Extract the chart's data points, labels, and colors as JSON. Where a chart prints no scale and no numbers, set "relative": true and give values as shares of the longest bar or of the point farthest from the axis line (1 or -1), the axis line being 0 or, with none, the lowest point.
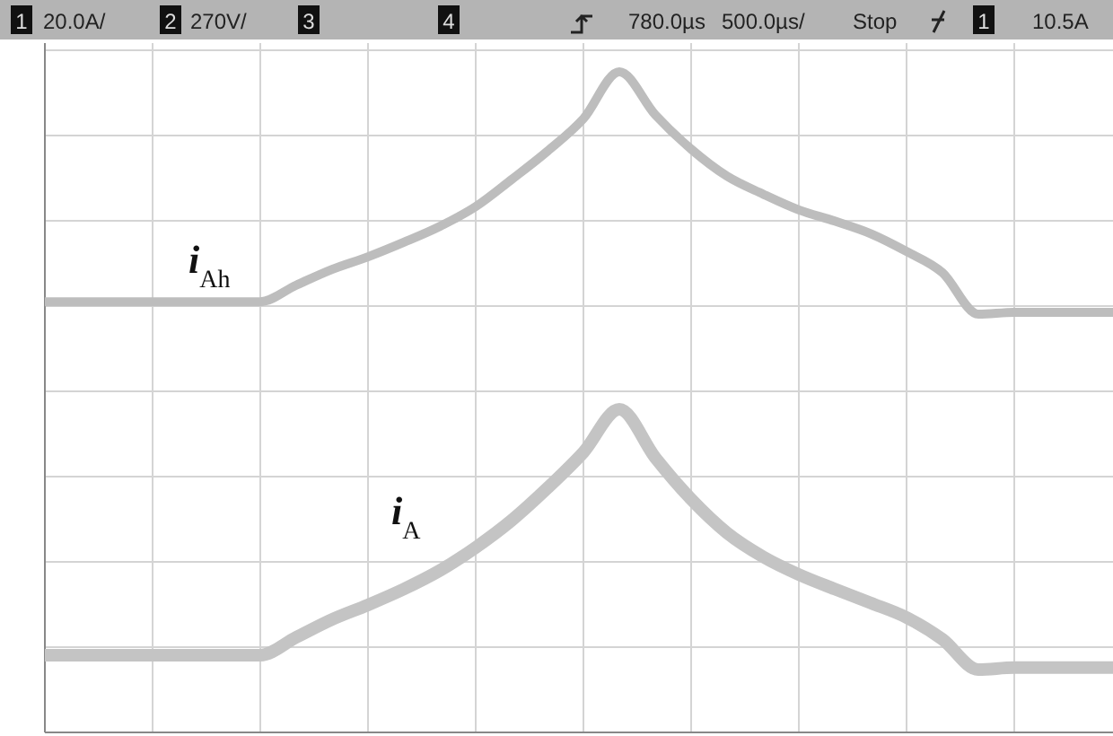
{
  "chart_data": {
    "type": "line",
    "relative": true,
    "grid": true,
    "line_style": "solid",
    "categories": [
      null,
      null,
      null,
      null,
      null,
      null,
      null,
      null,
      null,
      null,
      null,
      null,
      null,
      null,
      null,
      null,
      null,
      null,
      null,
      null,
      null,
      null,
      null,
      null,
      null,
      null,
      null,
      null,
      null,
      null,
      null
    ],
    "series": [
      {
        "name": "i$_{Ah}$",
        "color": "#bdbdbd",
        "values": [
          0.652,
          0.652,
          0.652,
          0.652,
          0.652,
          0.652,
          0.652,
          0.677,
          0.701,
          0.72,
          0.742,
          0.766,
          0.796,
          0.837,
          0.88,
          0.929,
          1,
          0.935,
          0.883,
          0.842,
          0.815,
          0.791,
          0.774,
          0.755,
          0.728,
          0.696,
          0.633,
          0.636,
          0.636,
          0.636,
          0.636
        ]
      },
      {
        "name": "i$_{A}$",
        "color": "#c4c4c4",
        "values": [
          0.117,
          0.117,
          0.117,
          0.117,
          0.117,
          0.117,
          0.117,
          0.144,
          0.171,
          0.193,
          0.217,
          0.245,
          0.28,
          0.321,
          0.37,
          0.424,
          0.489,
          0.416,
          0.353,
          0.302,
          0.266,
          0.239,
          0.217,
          0.196,
          0.174,
          0.141,
          0.095,
          0.098,
          0.098,
          0.098,
          0.098
        ]
      }
    ],
    "annotations": [
      "1",
      "20.0A/",
      "2",
      "270V/",
      "3",
      "4",
      "780.0µs",
      "500.0µs/",
      "Stop",
      "1",
      "10.5A"
    ]
  }
}
